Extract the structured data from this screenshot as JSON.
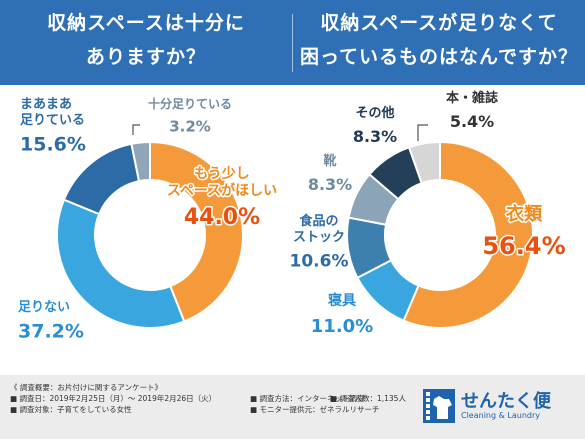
{
  "header": {
    "left_title": [
      "収納スペースは十分に",
      "ありますか？"
    ],
    "right_title": [
      "収納スペースが足りなくて",
      "困っているものはなんですか？"
    ]
  },
  "chart_data": [
    {
      "type": "pie",
      "donut": true,
      "title": "収納スペースは十分にありますか？",
      "slices": [
        {
          "label": "もう少しスペースがほしい",
          "label_lines": [
            "もう少し",
            "スペースがほしい"
          ],
          "value": 44.0,
          "value_text": "44.0%",
          "color": "#f59a3a"
        },
        {
          "label": "足りない",
          "label_lines": [
            "足りない"
          ],
          "value": 37.2,
          "value_text": "37.2%",
          "color": "#3aa6e0"
        },
        {
          "label": "まあまあ足りている",
          "label_lines": [
            "まあまあ",
            "足りている"
          ],
          "value": 15.6,
          "value_text": "15.6%",
          "color": "#2d6ba6"
        },
        {
          "label": "十分足りている",
          "label_lines": [
            "十分足りている"
          ],
          "value": 3.2,
          "value_text": "3.2%",
          "color": "#8fa6b8"
        }
      ]
    },
    {
      "type": "pie",
      "donut": true,
      "title": "収納スペースが足りなくて困っているものはなんですか？",
      "slices": [
        {
          "label": "衣類",
          "label_lines": [
            "衣類"
          ],
          "value": 56.4,
          "value_text": "56.4%",
          "color": "#f59a3a"
        },
        {
          "label": "寝具",
          "label_lines": [
            "寝具"
          ],
          "value": 11.0,
          "value_text": "11.0%",
          "color": "#3aa6e0"
        },
        {
          "label": "食品のストック",
          "label_lines": [
            "食品の",
            "ストック"
          ],
          "value": 10.6,
          "value_text": "10.6%",
          "color": "#3d7fae"
        },
        {
          "label": "靴",
          "label_lines": [
            "靴"
          ],
          "value": 8.3,
          "value_text": "8.3%",
          "color": "#8ba4b8"
        },
        {
          "label": "その他",
          "label_lines": [
            "その他"
          ],
          "value": 8.3,
          "value_text": "8.3%",
          "color": "#243f58"
        },
        {
          "label": "本・雑誌",
          "label_lines": [
            "本・雑誌"
          ],
          "value": 5.4,
          "value_text": "5.4%",
          "color": "#d6d6d6"
        }
      ]
    }
  ],
  "footer": {
    "survey_title": "《 調査概要：お片付けに関するアンケート》",
    "period": "■ 調査日：2019年2月25日（月）～ 2019年2月26日（火）",
    "method": "■ 調査方法：インターネット調査",
    "respondents": "■ 調査人数：1,135人",
    "target": "■ 調査対象：子育てをしている女性",
    "provider": "■ モニター提供元：ゼネラルリサーチ"
  },
  "logo": {
    "name": "せんたく便",
    "subtitle": "Cleaning & Laundry",
    "icon": "laundry-shirt-icon"
  }
}
